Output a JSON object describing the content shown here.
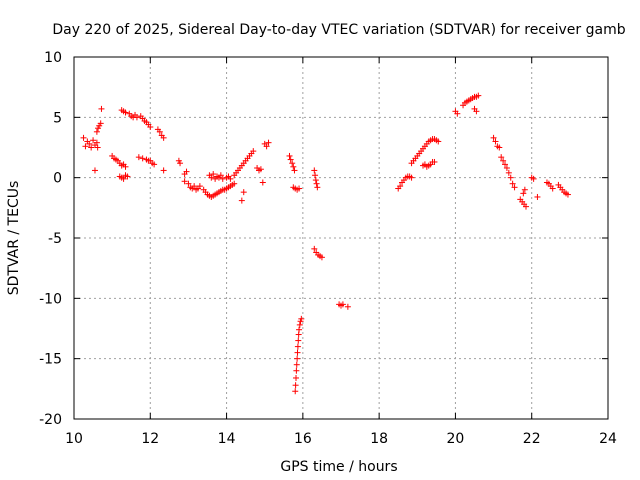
{
  "chart_data": {
    "type": "scatter",
    "title": "Day 220 of 2025, Sidereal Day-to-day VTEC variation (SDTVAR) for receiver gamb",
    "xlabel": "GPS time / hours",
    "ylabel": "SDTVAR / TECUs",
    "xlim": [
      10,
      24
    ],
    "ylim": [
      -20,
      10
    ],
    "xticks": [
      10,
      12,
      14,
      16,
      18,
      20,
      22,
      24
    ],
    "yticks": [
      -20,
      -15,
      -10,
      -5,
      0,
      5,
      10
    ],
    "xtick_labels": [
      "10",
      "12",
      "14",
      "16",
      "18",
      "20",
      "22",
      "24"
    ],
    "ytick_labels": [
      "-20",
      "-15",
      "-10",
      "-5",
      "0",
      "5",
      "10"
    ],
    "grid": true,
    "marker": "+",
    "color": "#ff0000",
    "series": [
      {
        "name": "SDTVAR",
        "points": [
          [
            10.25,
            3.3
          ],
          [
            10.3,
            2.6
          ],
          [
            10.35,
            3.0
          ],
          [
            10.4,
            2.8
          ],
          [
            10.45,
            2.5
          ],
          [
            10.5,
            3.1
          ],
          [
            10.55,
            2.7
          ],
          [
            10.6,
            2.9
          ],
          [
            10.62,
            2.5
          ],
          [
            10.55,
            0.6
          ],
          [
            10.6,
            3.8
          ],
          [
            10.63,
            4.1
          ],
          [
            10.66,
            4.3
          ],
          [
            10.7,
            4.5
          ],
          [
            10.72,
            5.7
          ],
          [
            11.0,
            1.8
          ],
          [
            11.05,
            1.6
          ],
          [
            11.1,
            1.5
          ],
          [
            11.15,
            1.4
          ],
          [
            11.2,
            1.2
          ],
          [
            11.25,
            1.0
          ],
          [
            11.3,
            1.1
          ],
          [
            11.35,
            0.9
          ],
          [
            11.2,
            0.1
          ],
          [
            11.25,
            0.0
          ],
          [
            11.3,
            -0.1
          ],
          [
            11.35,
            0.2
          ],
          [
            11.4,
            0.1
          ],
          [
            11.25,
            5.6
          ],
          [
            11.3,
            5.5
          ],
          [
            11.35,
            5.4
          ],
          [
            11.45,
            5.3
          ],
          [
            11.5,
            5.1
          ],
          [
            11.55,
            5.0
          ],
          [
            11.6,
            5.2
          ],
          [
            11.65,
            5.0
          ],
          [
            11.75,
            5.1
          ],
          [
            11.8,
            4.9
          ],
          [
            11.85,
            4.7
          ],
          [
            11.9,
            4.6
          ],
          [
            11.95,
            4.4
          ],
          [
            12.0,
            4.2
          ],
          [
            11.7,
            1.7
          ],
          [
            11.8,
            1.6
          ],
          [
            11.9,
            1.5
          ],
          [
            11.95,
            1.4
          ],
          [
            12.0,
            1.4
          ],
          [
            12.05,
            1.2
          ],
          [
            12.1,
            1.1
          ],
          [
            12.2,
            4.0
          ],
          [
            12.25,
            3.8
          ],
          [
            12.3,
            3.5
          ],
          [
            12.35,
            3.3
          ],
          [
            12.35,
            0.6
          ],
          [
            12.75,
            1.4
          ],
          [
            12.78,
            1.2
          ],
          [
            12.9,
            0.3
          ],
          [
            12.95,
            0.5
          ],
          [
            12.9,
            -0.3
          ],
          [
            13.0,
            -0.5
          ],
          [
            13.05,
            -0.8
          ],
          [
            13.1,
            -0.9
          ],
          [
            13.15,
            -0.7
          ],
          [
            13.2,
            -1.0
          ],
          [
            13.25,
            -0.9
          ],
          [
            13.3,
            -0.7
          ],
          [
            13.4,
            -1.0
          ],
          [
            13.45,
            -1.2
          ],
          [
            13.5,
            -1.4
          ],
          [
            13.55,
            -1.5
          ],
          [
            13.6,
            -1.6
          ],
          [
            13.65,
            -1.5
          ],
          [
            13.7,
            -1.4
          ],
          [
            13.75,
            -1.3
          ],
          [
            13.8,
            -1.2
          ],
          [
            13.85,
            -1.1
          ],
          [
            13.9,
            -1.0
          ],
          [
            13.95,
            -1.0
          ],
          [
            14.0,
            -0.9
          ],
          [
            14.05,
            -0.8
          ],
          [
            14.1,
            -0.7
          ],
          [
            14.15,
            -0.6
          ],
          [
            14.2,
            -0.5
          ],
          [
            13.55,
            0.2
          ],
          [
            13.6,
            0.0
          ],
          [
            13.65,
            0.3
          ],
          [
            13.7,
            -0.1
          ],
          [
            13.75,
            0.1
          ],
          [
            13.8,
            0.0
          ],
          [
            13.85,
            0.2
          ],
          [
            13.9,
            -0.1
          ],
          [
            14.0,
            0.0
          ],
          [
            14.05,
            0.1
          ],
          [
            14.1,
            -0.1
          ],
          [
            14.2,
            0.2
          ],
          [
            14.25,
            0.4
          ],
          [
            14.3,
            0.6
          ],
          [
            14.35,
            0.8
          ],
          [
            14.4,
            1.0
          ],
          [
            14.45,
            1.2
          ],
          [
            14.5,
            1.4
          ],
          [
            14.55,
            1.6
          ],
          [
            14.6,
            1.8
          ],
          [
            14.65,
            2.0
          ],
          [
            14.7,
            2.2
          ],
          [
            14.45,
            -1.2
          ],
          [
            14.4,
            -1.9
          ],
          [
            14.8,
            0.8
          ],
          [
            14.85,
            0.6
          ],
          [
            14.9,
            0.7
          ],
          [
            14.95,
            -0.4
          ],
          [
            15.0,
            2.8
          ],
          [
            15.05,
            2.6
          ],
          [
            15.1,
            2.9
          ],
          [
            15.65,
            1.8
          ],
          [
            15.68,
            1.5
          ],
          [
            15.72,
            1.2
          ],
          [
            15.75,
            0.9
          ],
          [
            15.78,
            0.6
          ],
          [
            15.75,
            -0.8
          ],
          [
            15.8,
            -0.9
          ],
          [
            15.85,
            -1.0
          ],
          [
            15.9,
            -0.9
          ],
          [
            15.8,
            -17.7
          ],
          [
            15.81,
            -17.2
          ],
          [
            15.82,
            -16.6
          ],
          [
            15.83,
            -16.0
          ],
          [
            15.84,
            -15.5
          ],
          [
            15.85,
            -15.0
          ],
          [
            15.86,
            -14.5
          ],
          [
            15.87,
            -14.0
          ],
          [
            15.88,
            -13.5
          ],
          [
            15.89,
            -13.0
          ],
          [
            15.9,
            -12.6
          ],
          [
            15.92,
            -12.2
          ],
          [
            15.94,
            -11.9
          ],
          [
            15.96,
            -11.7
          ],
          [
            16.3,
            0.6
          ],
          [
            16.32,
            0.2
          ],
          [
            16.34,
            -0.2
          ],
          [
            16.36,
            -0.5
          ],
          [
            16.38,
            -0.8
          ],
          [
            16.3,
            -5.9
          ],
          [
            16.35,
            -6.2
          ],
          [
            16.4,
            -6.4
          ],
          [
            16.45,
            -6.5
          ],
          [
            16.5,
            -6.6
          ],
          [
            16.95,
            -10.5
          ],
          [
            17.0,
            -10.6
          ],
          [
            17.05,
            -10.5
          ],
          [
            17.18,
            -10.7
          ],
          [
            18.5,
            -0.9
          ],
          [
            18.55,
            -0.7
          ],
          [
            18.6,
            -0.4
          ],
          [
            18.65,
            -0.2
          ],
          [
            18.7,
            0.0
          ],
          [
            18.75,
            0.1
          ],
          [
            18.8,
            0.1
          ],
          [
            18.85,
            0.0
          ],
          [
            18.85,
            1.2
          ],
          [
            18.9,
            1.4
          ],
          [
            18.95,
            1.6
          ],
          [
            19.0,
            1.8
          ],
          [
            19.05,
            2.0
          ],
          [
            19.1,
            2.2
          ],
          [
            19.15,
            2.4
          ],
          [
            19.2,
            2.6
          ],
          [
            19.25,
            2.8
          ],
          [
            19.3,
            3.0
          ],
          [
            19.35,
            3.1
          ],
          [
            19.4,
            3.2
          ],
          [
            19.45,
            3.2
          ],
          [
            19.5,
            3.1
          ],
          [
            19.55,
            3.0
          ],
          [
            19.15,
            1.0
          ],
          [
            19.2,
            1.1
          ],
          [
            19.25,
            0.9
          ],
          [
            19.3,
            1.0
          ],
          [
            19.35,
            1.1
          ],
          [
            19.4,
            1.3
          ],
          [
            19.45,
            1.3
          ],
          [
            20.0,
            5.5
          ],
          [
            20.05,
            5.3
          ],
          [
            20.2,
            6.0
          ],
          [
            20.25,
            6.2
          ],
          [
            20.3,
            6.3
          ],
          [
            20.35,
            6.4
          ],
          [
            20.4,
            6.5
          ],
          [
            20.45,
            6.6
          ],
          [
            20.5,
            6.7
          ],
          [
            20.55,
            6.7
          ],
          [
            20.6,
            6.8
          ],
          [
            20.5,
            5.7
          ],
          [
            20.55,
            5.5
          ],
          [
            21.0,
            3.3
          ],
          [
            21.05,
            3.0
          ],
          [
            21.1,
            2.6
          ],
          [
            21.15,
            2.5
          ],
          [
            21.2,
            1.7
          ],
          [
            21.25,
            1.4
          ],
          [
            21.3,
            1.1
          ],
          [
            21.35,
            0.8
          ],
          [
            21.4,
            0.4
          ],
          [
            21.45,
            0.0
          ],
          [
            21.5,
            -0.5
          ],
          [
            21.55,
            -0.8
          ],
          [
            21.7,
            -1.8
          ],
          [
            21.75,
            -2.0
          ],
          [
            21.8,
            -2.2
          ],
          [
            21.85,
            -2.4
          ],
          [
            21.78,
            -1.3
          ],
          [
            21.82,
            -1.0
          ],
          [
            22.0,
            0.0
          ],
          [
            22.05,
            -0.1
          ],
          [
            22.15,
            -1.6
          ],
          [
            22.4,
            -0.4
          ],
          [
            22.45,
            -0.5
          ],
          [
            22.5,
            -0.7
          ],
          [
            22.55,
            -0.9
          ],
          [
            22.7,
            -0.6
          ],
          [
            22.75,
            -0.8
          ],
          [
            22.8,
            -1.0
          ],
          [
            22.85,
            -1.2
          ],
          [
            22.9,
            -1.3
          ],
          [
            22.95,
            -1.4
          ]
        ]
      }
    ]
  }
}
